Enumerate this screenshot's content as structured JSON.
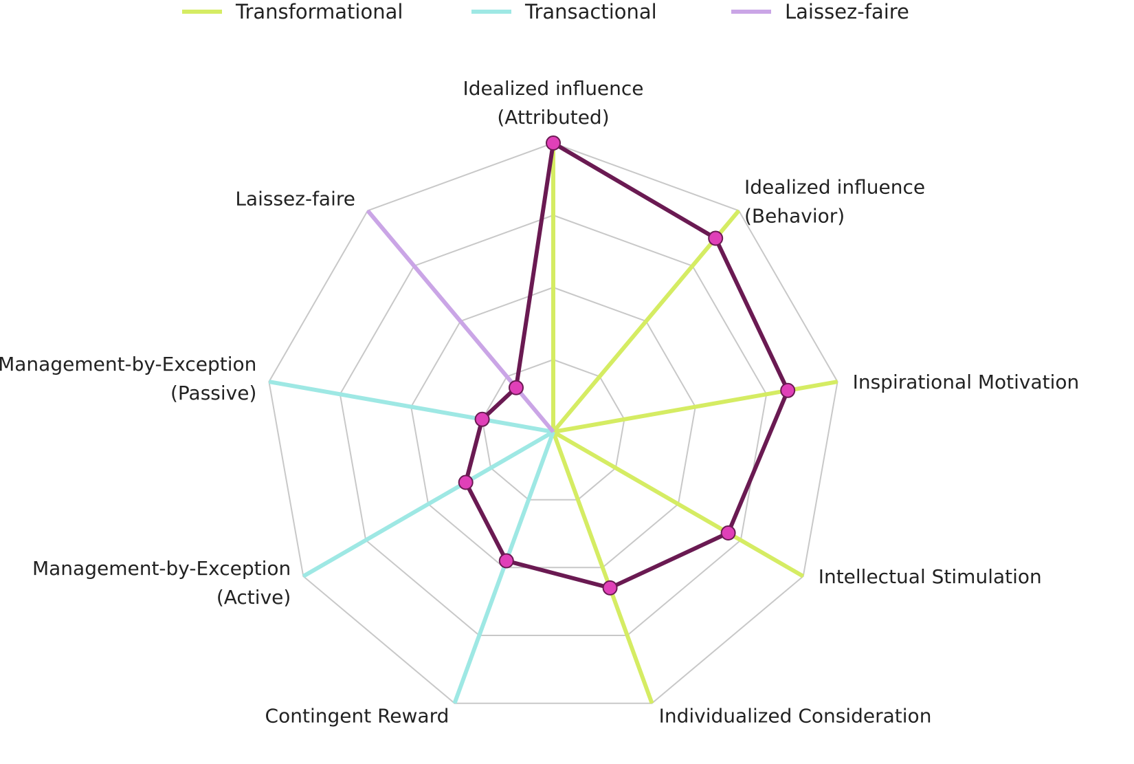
{
  "chart_data": {
    "type": "radar",
    "axes": [
      "Idealized influence (Attributed)",
      "Idealized influence (Behavior)",
      "Inspirational Motivation",
      "Intellectual Stimulation",
      "Individualized Consideration",
      "Contingent Reward",
      "Management-by-Exception (Active)",
      "Management-by-Exception (Passive)",
      "Laissez-faire"
    ],
    "axis_label_lines": [
      [
        "Idealized influence",
        "(Attributed)"
      ],
      [
        "Idealized influence",
        "(Behavior)"
      ],
      [
        "Inspirational Motivation"
      ],
      [
        "Intellectual Stimulation"
      ],
      [
        "Individualized Consideration"
      ],
      [
        "Contingent Reward"
      ],
      [
        "Management-by-Exception",
        "(Active)"
      ],
      [
        "Management-by-Exception",
        "(Passive)"
      ],
      [
        "Laissez-faire"
      ]
    ],
    "rmax": 4,
    "ring_count": 4,
    "grid": true,
    "legend_position": "top",
    "legend": [
      {
        "name": "Transformational",
        "color": "#d5ec63"
      },
      {
        "name": "Transactional",
        "color": "#9ee8e4"
      },
      {
        "name": "Laissez-faire",
        "color": "#caa5e6"
      }
    ],
    "category_spokes": [
      {
        "axis": 0,
        "category": "Transformational",
        "value": 4
      },
      {
        "axis": 1,
        "category": "Transformational",
        "value": 4
      },
      {
        "axis": 2,
        "category": "Transformational",
        "value": 4
      },
      {
        "axis": 3,
        "category": "Transformational",
        "value": 4
      },
      {
        "axis": 4,
        "category": "Transformational",
        "value": 4
      },
      {
        "axis": 5,
        "category": "Transactional",
        "value": 4
      },
      {
        "axis": 6,
        "category": "Transactional",
        "value": 4
      },
      {
        "axis": 7,
        "category": "Transactional",
        "value": 4
      },
      {
        "axis": 8,
        "category": "Laissez-faire",
        "value": 4
      }
    ],
    "series": [
      {
        "color": "#6a1a52",
        "marker_color": "#e040b8",
        "values": [
          4.0,
          3.5,
          3.3,
          2.8,
          2.3,
          1.9,
          1.4,
          1.0,
          0.8
        ]
      }
    ]
  },
  "colors": {
    "grid": "#c8c8c8",
    "text": "#222222"
  }
}
